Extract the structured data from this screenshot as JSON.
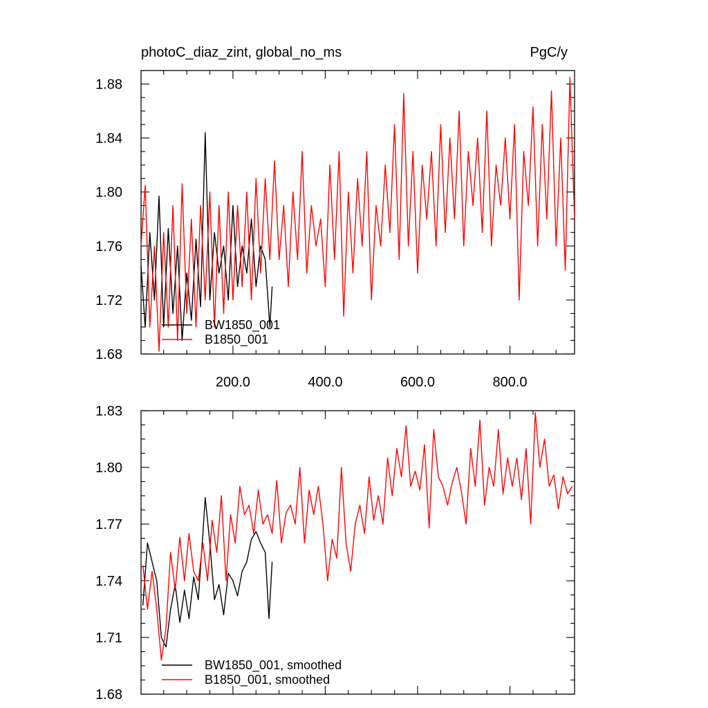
{
  "chart_data": [
    {
      "type": "line",
      "title": "photoC_diaz_zint, global_no_ms",
      "units": "PgC/y",
      "xlabel": "",
      "ylabel": "",
      "xlim": [
        1,
        940
      ],
      "ylim": [
        1.68,
        1.89
      ],
      "yticks": [
        1.68,
        1.72,
        1.76,
        1.8,
        1.84,
        1.88
      ],
      "ytick_labels": [
        "1.68",
        "1.72",
        "1.76",
        "1.80",
        "1.84",
        "1.88"
      ],
      "xticks": [
        200,
        400,
        600,
        800
      ],
      "xtick_labels": [
        "200.0",
        "400.0",
        "600.0",
        "800.0"
      ],
      "legend_position": "bottom-left",
      "series": [
        {
          "name": "BW1850_001",
          "color": "#000000",
          "x": [
            1,
            10,
            20,
            30,
            40,
            50,
            60,
            70,
            80,
            90,
            100,
            110,
            120,
            130,
            140,
            150,
            160,
            170,
            180,
            190,
            200,
            210,
            220,
            230,
            240,
            250,
            260,
            270,
            280,
            285
          ],
          "values": [
            1.745,
            1.7,
            1.77,
            1.72,
            1.797,
            1.7,
            1.773,
            1.71,
            1.76,
            1.69,
            1.74,
            1.705,
            1.765,
            1.715,
            1.844,
            1.72,
            1.77,
            1.74,
            1.76,
            1.72,
            1.79,
            1.73,
            1.76,
            1.74,
            1.78,
            1.73,
            1.76,
            1.75,
            1.7,
            1.73
          ]
        },
        {
          "name": "B1850_001",
          "color": "#ff0000",
          "x": [
            1,
            10,
            20,
            30,
            40,
            50,
            60,
            70,
            80,
            90,
            100,
            110,
            120,
            130,
            140,
            150,
            160,
            170,
            180,
            190,
            200,
            210,
            220,
            230,
            240,
            250,
            260,
            270,
            280,
            290,
            300,
            310,
            320,
            330,
            340,
            350,
            360,
            370,
            380,
            390,
            400,
            410,
            420,
            430,
            440,
            450,
            460,
            470,
            480,
            490,
            500,
            510,
            520,
            530,
            540,
            550,
            560,
            570,
            580,
            590,
            600,
            610,
            620,
            630,
            640,
            650,
            660,
            670,
            680,
            690,
            700,
            710,
            720,
            730,
            740,
            750,
            760,
            770,
            780,
            790,
            800,
            810,
            820,
            830,
            840,
            850,
            860,
            870,
            880,
            890,
            900,
            910,
            920,
            930,
            940
          ],
          "values": [
            1.76,
            1.805,
            1.7,
            1.76,
            1.682,
            1.77,
            1.7,
            1.79,
            1.69,
            1.806,
            1.71,
            1.78,
            1.7,
            1.79,
            1.72,
            1.8,
            1.7,
            1.79,
            1.71,
            1.8,
            1.72,
            1.79,
            1.73,
            1.8,
            1.72,
            1.81,
            1.74,
            1.81,
            1.75,
            1.823,
            1.75,
            1.79,
            1.73,
            1.8,
            1.75,
            1.83,
            1.74,
            1.79,
            1.76,
            1.78,
            1.73,
            1.82,
            1.75,
            1.83,
            1.708,
            1.8,
            1.74,
            1.81,
            1.76,
            1.83,
            1.72,
            1.79,
            1.76,
            1.82,
            1.77,
            1.85,
            1.75,
            1.873,
            1.76,
            1.83,
            1.74,
            1.82,
            1.78,
            1.83,
            1.76,
            1.85,
            1.77,
            1.84,
            1.78,
            1.86,
            1.76,
            1.83,
            1.79,
            1.84,
            1.77,
            1.86,
            1.76,
            1.82,
            1.79,
            1.84,
            1.78,
            1.85,
            1.72,
            1.83,
            1.79,
            1.863,
            1.76,
            1.85,
            1.78,
            1.875,
            1.76,
            1.84,
            1.742,
            1.885,
            1.78
          ]
        }
      ]
    },
    {
      "type": "line",
      "title": "",
      "xlabel": "",
      "ylabel": "",
      "xlim": [
        1,
        940
      ],
      "ylim": [
        1.68,
        1.83
      ],
      "yticks": [
        1.68,
        1.71,
        1.74,
        1.77,
        1.8,
        1.83
      ],
      "ytick_labels": [
        "1.68",
        "1.71",
        "1.74",
        "1.77",
        "1.80",
        "1.83"
      ],
      "xticks": [
        200,
        400,
        600,
        800
      ],
      "xtick_labels": [],
      "legend_position": "bottom-left",
      "series": [
        {
          "name": "BW1850_001, smoothed",
          "color": "#000000",
          "x": [
            5,
            15,
            25,
            35,
            45,
            55,
            65,
            75,
            85,
            95,
            105,
            115,
            125,
            135,
            140,
            150,
            160,
            170,
            180,
            190,
            200,
            210,
            220,
            230,
            240,
            250,
            260,
            270,
            278,
            285
          ],
          "values": [
            1.727,
            1.76,
            1.75,
            1.74,
            1.71,
            1.705,
            1.725,
            1.738,
            1.718,
            1.735,
            1.72,
            1.742,
            1.73,
            1.765,
            1.784,
            1.76,
            1.73,
            1.738,
            1.722,
            1.744,
            1.74,
            1.732,
            1.745,
            1.75,
            1.762,
            1.766,
            1.76,
            1.755,
            1.72,
            1.75
          ]
        },
        {
          "name": "B1850_001, smoothed",
          "color": "#ff0000",
          "x": [
            5,
            15,
            25,
            35,
            45,
            55,
            65,
            75,
            85,
            95,
            105,
            115,
            125,
            135,
            145,
            155,
            165,
            175,
            185,
            195,
            205,
            215,
            225,
            235,
            245,
            255,
            265,
            275,
            285,
            295,
            305,
            315,
            325,
            335,
            345,
            355,
            365,
            375,
            385,
            395,
            405,
            415,
            425,
            435,
            445,
            455,
            465,
            475,
            485,
            495,
            505,
            515,
            525,
            535,
            545,
            555,
            565,
            575,
            585,
            595,
            605,
            615,
            625,
            635,
            645,
            655,
            665,
            675,
            685,
            695,
            705,
            715,
            725,
            735,
            745,
            755,
            765,
            775,
            785,
            795,
            805,
            815,
            825,
            835,
            845,
            855,
            865,
            875,
            885,
            895,
            905,
            915,
            925,
            935
          ],
          "values": [
            1.748,
            1.725,
            1.745,
            1.725,
            1.698,
            1.715,
            1.755,
            1.735,
            1.763,
            1.74,
            1.765,
            1.745,
            1.74,
            1.76,
            1.74,
            1.772,
            1.755,
            1.785,
            1.74,
            1.775,
            1.76,
            1.79,
            1.775,
            1.78,
            1.765,
            1.788,
            1.77,
            1.775,
            1.765,
            1.793,
            1.76,
            1.776,
            1.78,
            1.77,
            1.8,
            1.76,
            1.788,
            1.775,
            1.79,
            1.77,
            1.74,
            1.762,
            1.752,
            1.8,
            1.76,
            1.745,
            1.77,
            1.78,
            1.765,
            1.795,
            1.772,
            1.785,
            1.77,
            1.805,
            1.785,
            1.81,
            1.795,
            1.822,
            1.79,
            1.798,
            1.788,
            1.812,
            1.768,
            1.82,
            1.795,
            1.79,
            1.78,
            1.792,
            1.8,
            1.787,
            1.77,
            1.81,
            1.79,
            1.825,
            1.78,
            1.8,
            1.79,
            1.82,
            1.786,
            1.805,
            1.79,
            1.805,
            1.783,
            1.81,
            1.77,
            1.829,
            1.8,
            1.815,
            1.79,
            1.796,
            1.778,
            1.795,
            1.786,
            1.79
          ]
        }
      ]
    }
  ]
}
